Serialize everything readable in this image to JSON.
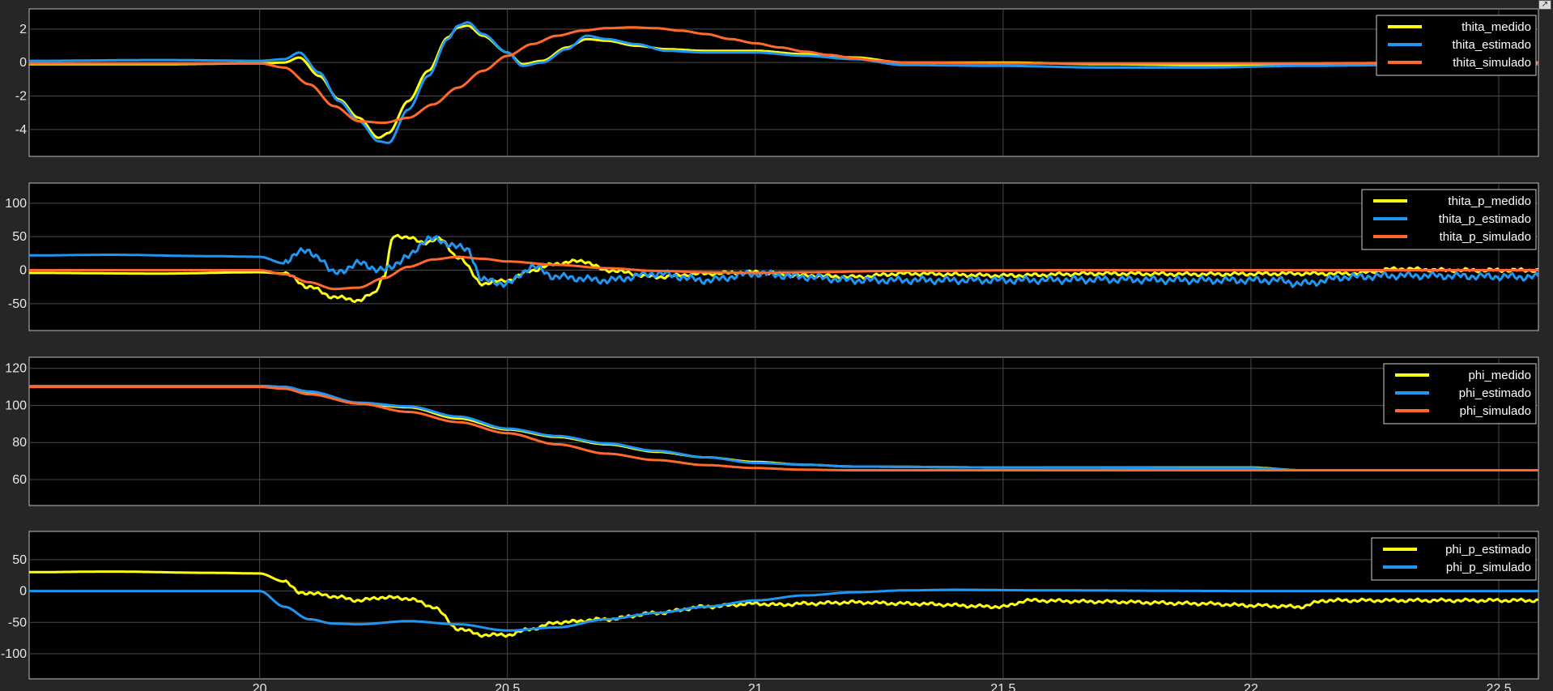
{
  "window": {
    "undock_icon": "undock-arrow-icon"
  },
  "chart_data": [
    {
      "type": "line",
      "xlim": [
        19.535,
        22.58
      ],
      "ylim": [
        -5.6,
        3.2
      ],
      "yticks": [
        -4,
        -2,
        0,
        2
      ],
      "xticks": [
        20,
        20.5,
        21,
        21.5,
        22,
        22.5
      ],
      "grid": true,
      "legend": "top-right",
      "series": [
        {
          "name": "thita_medido",
          "color": "#ffff11",
          "x": [
            19.535,
            19.8,
            20.0,
            20.05,
            20.08,
            20.12,
            20.16,
            20.2,
            20.24,
            20.26,
            20.3,
            20.34,
            20.38,
            20.4,
            20.42,
            20.45,
            20.5,
            20.53,
            20.57,
            20.62,
            20.66,
            20.7,
            20.76,
            20.82,
            20.9,
            21.0,
            21.1,
            21.2,
            21.3,
            21.5,
            21.7,
            21.9,
            22.1,
            22.3,
            22.58
          ],
          "y": [
            -0.1,
            -0.1,
            -0.05,
            0.0,
            0.3,
            -0.8,
            -2.2,
            -3.3,
            -4.5,
            -4.2,
            -2.3,
            -0.5,
            1.5,
            2.1,
            2.2,
            1.6,
            0.6,
            -0.1,
            0.1,
            0.9,
            1.4,
            1.3,
            1.0,
            0.8,
            0.7,
            0.7,
            0.5,
            0.3,
            0.0,
            0.0,
            -0.1,
            -0.15,
            -0.1,
            -0.05,
            0.0
          ]
        },
        {
          "name": "thita_estimado",
          "color": "#1f96f2",
          "x": [
            19.535,
            19.8,
            20.0,
            20.05,
            20.08,
            20.12,
            20.16,
            20.2,
            20.24,
            20.26,
            20.3,
            20.34,
            20.38,
            20.4,
            20.42,
            20.45,
            20.5,
            20.53,
            20.57,
            20.62,
            20.66,
            20.7,
            20.76,
            20.82,
            20.9,
            21.0,
            21.1,
            21.2,
            21.3,
            21.5,
            21.7,
            21.9,
            22.1,
            22.3,
            22.58
          ],
          "y": [
            0.1,
            0.15,
            0.1,
            0.2,
            0.6,
            -0.6,
            -2.3,
            -3.5,
            -4.7,
            -4.8,
            -2.8,
            -0.8,
            1.4,
            2.2,
            2.4,
            1.7,
            0.6,
            -0.2,
            0.0,
            0.8,
            1.6,
            1.4,
            1.1,
            0.7,
            0.6,
            0.6,
            0.4,
            0.2,
            -0.15,
            -0.2,
            -0.3,
            -0.3,
            -0.2,
            -0.15,
            -0.1
          ]
        },
        {
          "name": "thita_simulado",
          "color": "#ff6a2a",
          "x": [
            19.535,
            20.0,
            20.05,
            20.1,
            20.15,
            20.2,
            20.25,
            20.3,
            20.35,
            20.4,
            20.45,
            20.5,
            20.55,
            20.6,
            20.65,
            20.7,
            20.75,
            20.8,
            20.85,
            20.9,
            20.95,
            21.0,
            21.05,
            21.1,
            21.15,
            21.2,
            21.25,
            21.3,
            21.5,
            22.0,
            22.58
          ],
          "y": [
            -0.05,
            -0.05,
            -0.3,
            -1.3,
            -2.6,
            -3.5,
            -3.6,
            -3.3,
            -2.5,
            -1.5,
            -0.5,
            0.4,
            1.1,
            1.6,
            1.9,
            2.05,
            2.1,
            2.05,
            1.9,
            1.7,
            1.4,
            1.15,
            0.9,
            0.65,
            0.45,
            0.25,
            0.1,
            0.0,
            -0.05,
            -0.05,
            0.0
          ]
        }
      ]
    },
    {
      "type": "line",
      "xlim": [
        19.535,
        22.58
      ],
      "ylim": [
        -90,
        130
      ],
      "yticks": [
        -50,
        0,
        50,
        100
      ],
      "xticks": [
        20,
        20.5,
        21,
        21.5,
        22,
        22.5
      ],
      "grid": true,
      "legend": "top-right",
      "series": [
        {
          "name": "thita_p_medido",
          "color": "#ffff11",
          "x": [
            19.535,
            19.8,
            20.0,
            20.05,
            20.1,
            20.15,
            20.2,
            20.23,
            20.25,
            20.27,
            20.3,
            20.33,
            20.36,
            20.4,
            20.45,
            20.5,
            20.55,
            20.6,
            20.65,
            20.7,
            20.8,
            20.9,
            21.0,
            21.1,
            21.2,
            21.3,
            21.5,
            21.7,
            21.9,
            22.1,
            22.2,
            22.3,
            22.4,
            22.58
          ],
          "y": [
            -4,
            -5,
            -3,
            -5,
            -25,
            -40,
            -45,
            -35,
            -10,
            50,
            50,
            40,
            48,
            20,
            -20,
            -15,
            0,
            10,
            14,
            0,
            -10,
            -5,
            -3,
            -8,
            -10,
            -5,
            -8,
            -5,
            -6,
            -5,
            -5,
            2,
            0,
            0
          ],
          "jitter": 3
        },
        {
          "name": "thita_p_estimado",
          "color": "#1f96f2",
          "x": [
            19.535,
            19.7,
            19.9,
            20.0,
            20.05,
            20.08,
            20.12,
            20.15,
            20.2,
            20.25,
            20.3,
            20.34,
            20.38,
            20.42,
            20.45,
            20.5,
            20.55,
            20.6,
            20.7,
            20.8,
            20.9,
            21.0,
            21.1,
            21.2,
            21.3,
            21.5,
            21.7,
            21.9,
            22.05,
            22.1,
            22.2,
            22.3,
            22.58
          ],
          "y": [
            22,
            23,
            21,
            20,
            10,
            30,
            20,
            -5,
            10,
            0,
            20,
            48,
            40,
            30,
            -15,
            -20,
            5,
            -10,
            -15,
            -5,
            -15,
            -5,
            -10,
            -15,
            -15,
            -15,
            -14,
            -15,
            -15,
            -20,
            -10,
            -8,
            -10
          ],
          "jitter": 6
        },
        {
          "name": "thita_p_simulado",
          "color": "#ff6a2a",
          "x": [
            19.535,
            20.0,
            20.05,
            20.1,
            20.15,
            20.2,
            20.25,
            20.3,
            20.35,
            20.4,
            20.45,
            20.5,
            20.6,
            20.7,
            20.8,
            20.9,
            21.0,
            21.1,
            21.3,
            21.6,
            22.58
          ],
          "y": [
            0,
            0,
            -6,
            -18,
            -28,
            -26,
            -12,
            5,
            16,
            20,
            17,
            13,
            8,
            3,
            -1,
            -3,
            -4,
            -3,
            -1,
            0,
            0
          ]
        }
      ]
    },
    {
      "type": "line",
      "xlim": [
        19.535,
        22.58
      ],
      "ylim": [
        46,
        126
      ],
      "yticks": [
        60,
        80,
        100,
        120
      ],
      "xticks": [
        20,
        20.5,
        21,
        21.5,
        22,
        22.5
      ],
      "grid": true,
      "legend": "top-right",
      "series": [
        {
          "name": "phi_medido",
          "color": "#ffff11",
          "x": [
            19.535,
            20.0,
            20.05,
            20.1,
            20.2,
            20.3,
            20.4,
            20.5,
            20.6,
            20.7,
            20.8,
            20.9,
            21.0,
            21.1,
            21.2,
            21.5,
            22.0,
            22.1,
            22.58
          ],
          "y": [
            110.5,
            110.5,
            110,
            107,
            101,
            99,
            93,
            87,
            83,
            79,
            75,
            72,
            69.5,
            68,
            67,
            66.5,
            66.5,
            65,
            65
          ]
        },
        {
          "name": "phi_estimado",
          "color": "#1f96f2",
          "x": [
            19.535,
            20.0,
            20.05,
            20.1,
            20.2,
            20.3,
            20.4,
            20.5,
            20.6,
            20.7,
            20.8,
            20.9,
            21.0,
            21.1,
            21.2,
            21.5,
            22.0,
            22.1,
            22.58
          ],
          "y": [
            110.5,
            110.5,
            110,
            107.5,
            101.5,
            99.5,
            94,
            87.5,
            83.5,
            79.5,
            75.5,
            72,
            69,
            68,
            67,
            66.5,
            66.2,
            65,
            65
          ]
        },
        {
          "name": "phi_simulado",
          "color": "#ff6a2a",
          "x": [
            19.535,
            20.0,
            20.05,
            20.1,
            20.2,
            20.3,
            20.4,
            20.5,
            20.6,
            20.7,
            20.8,
            20.9,
            21.0,
            21.1,
            21.2,
            21.3,
            21.5,
            22.0,
            22.58
          ],
          "y": [
            110,
            110,
            109,
            106,
            101,
            96.5,
            91,
            85,
            79,
            74,
            70.5,
            67.8,
            66.2,
            65.3,
            65,
            65,
            65,
            65,
            65
          ]
        }
      ]
    },
    {
      "type": "line",
      "xlim": [
        19.535,
        22.58
      ],
      "ylim": [
        -140,
        95
      ],
      "yticks": [
        -100,
        -50,
        0,
        50
      ],
      "xticks": [
        20,
        20.5,
        21,
        21.5,
        22,
        22.5
      ],
      "xticklabels": [
        "20",
        "20.5",
        "21",
        "21.5",
        "22",
        "22.5"
      ],
      "grid": true,
      "legend": "top-right",
      "series": [
        {
          "name": "phi_p_estimado",
          "color": "#ffff11",
          "x": [
            19.535,
            19.7,
            19.9,
            20.0,
            20.05,
            20.08,
            20.12,
            20.16,
            20.2,
            20.25,
            20.3,
            20.35,
            20.4,
            20.45,
            20.5,
            20.55,
            20.6,
            20.7,
            20.8,
            20.9,
            21.0,
            21.05,
            21.1,
            21.2,
            21.3,
            21.5,
            21.55,
            21.7,
            21.9,
            22.0,
            22.1,
            22.15,
            22.3,
            22.58
          ],
          "y": [
            30,
            31,
            29,
            28,
            15,
            -2,
            -5,
            -10,
            -15,
            -10,
            -12,
            -25,
            -60,
            -70,
            -70,
            -60,
            -50,
            -45,
            -35,
            -25,
            -20,
            -22,
            -20,
            -18,
            -20,
            -25,
            -15,
            -17,
            -20,
            -23,
            -25,
            -15,
            -15,
            -15
          ],
          "jitter": 3
        },
        {
          "name": "phi_p_simulado",
          "color": "#1f96f2",
          "x": [
            19.535,
            20.0,
            20.05,
            20.1,
            20.15,
            20.2,
            20.3,
            20.4,
            20.5,
            20.6,
            20.7,
            20.8,
            20.9,
            21.0,
            21.1,
            21.2,
            21.3,
            21.4,
            21.6,
            22.0,
            22.58
          ],
          "y": [
            0,
            0,
            -25,
            -45,
            -52,
            -53,
            -48,
            -53,
            -63,
            -58,
            -45,
            -35,
            -25,
            -15,
            -7,
            -2,
            1,
            2,
            1,
            0,
            0
          ]
        }
      ]
    }
  ]
}
